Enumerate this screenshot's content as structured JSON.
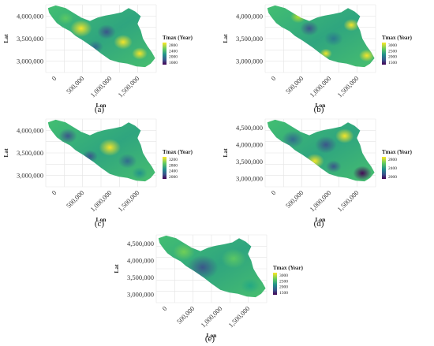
{
  "chart_data": [
    {
      "type": "heatmap",
      "caption": "(a)",
      "xlabel": "Lon",
      "ylabel": "Lat",
      "x_ticks": [
        "0",
        "500,000",
        "1,000,000",
        "1,500,000"
      ],
      "y_ticks": [
        "3,000,000",
        "3,500,000",
        "4,000,000"
      ],
      "legend": {
        "title": "Tmax (Year)",
        "ticks": [
          "2800",
          "2400",
          "2000",
          "1600"
        ]
      },
      "grid": true,
      "legend_position": "right"
    },
    {
      "type": "heatmap",
      "caption": "(b)",
      "xlabel": "Lon",
      "ylabel": "Lat",
      "x_ticks": [
        "0",
        "500,000",
        "1,000,000",
        "1,500,000"
      ],
      "y_ticks": [
        "3,000,000",
        "3,500,000",
        "4,000,000"
      ],
      "legend": {
        "title": "Tmax (Year)",
        "ticks": [
          "3000",
          "2500",
          "2000",
          "1500"
        ]
      },
      "grid": true,
      "legend_position": "right"
    },
    {
      "type": "heatmap",
      "caption": "(c)",
      "xlabel": "Lon",
      "ylabel": "Lat",
      "x_ticks": [
        "0",
        "500,000",
        "1,000,000",
        "1,500,000"
      ],
      "y_ticks": [
        "3,000,000",
        "3,500,000",
        "4,000,000"
      ],
      "legend": {
        "title": "Tmax (Year)",
        "ticks": [
          "3200",
          "2800",
          "2400",
          "2000"
        ]
      },
      "grid": true,
      "legend_position": "right"
    },
    {
      "type": "heatmap",
      "caption": "(d)",
      "xlabel": "Lon",
      "ylabel": "Lat",
      "x_ticks": [
        "0",
        "500,000",
        "1,000,000",
        "1,500,000"
      ],
      "y_ticks": [
        "3,000,000",
        "3,500,000",
        "4,000,000",
        "4,500,000"
      ],
      "legend": {
        "title": "Tmax (Year)",
        "ticks": [
          "2800",
          "2400",
          "2000"
        ]
      },
      "grid": true,
      "legend_position": "right"
    },
    {
      "type": "heatmap",
      "caption": "(e)",
      "xlabel": "Lon",
      "ylabel": "Lat",
      "x_ticks": [
        "0",
        "500,000",
        "1,000,000",
        "1,500,000"
      ],
      "y_ticks": [
        "3,000,000",
        "3,500,000",
        "4,000,000",
        "4,500,000"
      ],
      "legend": {
        "title": "Tmax (Year)",
        "ticks": [
          "3000",
          "2500",
          "2000",
          "1500"
        ]
      },
      "grid": true,
      "legend_position": "right"
    }
  ],
  "colors": {
    "low": "#440154",
    "mid_low": "#3b528b",
    "mid": "#21908c",
    "mid_high": "#5ec962",
    "high": "#fde725",
    "grid": "#e4e4e4"
  }
}
